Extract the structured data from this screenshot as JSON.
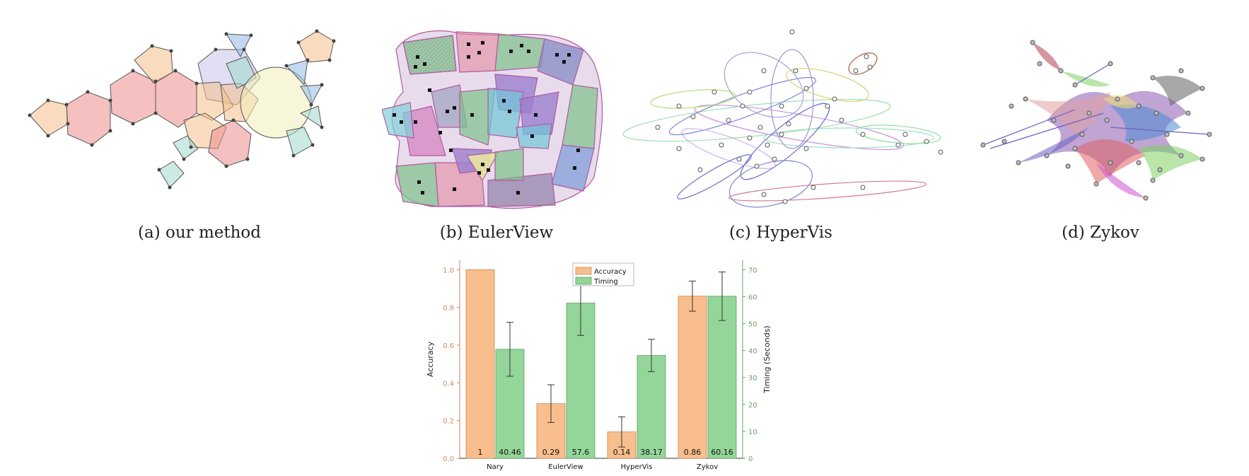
{
  "captions": {
    "a": "(a) our method",
    "b": "(b) EulerView",
    "c": "(c) HyperVis",
    "d": "(d) Zykov"
  },
  "colors": {
    "accuracy": "#f9be8e",
    "accuracy_stroke": "#c98550",
    "timing": "#94d69a",
    "timing_stroke": "#5a9e60",
    "left_axis": "#c98a66",
    "right_axis": "#6aa070"
  },
  "chart_data": {
    "type": "bar",
    "categories": [
      "Nary",
      "EulerView",
      "HyperVis",
      "Zykov"
    ],
    "series": [
      {
        "name": "Accuracy",
        "axis": "left",
        "values": [
          1,
          0.29,
          0.14,
          0.86
        ],
        "labels": [
          "1",
          "0.29",
          "0.14",
          "0.86"
        ],
        "error": [
          null,
          0.1,
          0.08,
          0.08
        ]
      },
      {
        "name": "Timing",
        "axis": "right",
        "values": [
          40.46,
          57.6,
          38.17,
          60.16
        ],
        "labels": [
          "40.46",
          "57.6",
          "38.17",
          "60.16"
        ],
        "error": [
          10,
          12,
          6,
          9
        ]
      }
    ],
    "ylabel": "Accuracy",
    "y2label": "Timing (Seconds)",
    "ylim": [
      0,
      1.05
    ],
    "y2lim": [
      0,
      73.5
    ],
    "yticks": [
      "0.0",
      "0.2",
      "0.4",
      "0.6",
      "0.8",
      "1.0"
    ],
    "y2ticks": [
      "0",
      "10",
      "20",
      "30",
      "40",
      "50",
      "60",
      "70"
    ],
    "legend": "top-center",
    "grid": false
  }
}
